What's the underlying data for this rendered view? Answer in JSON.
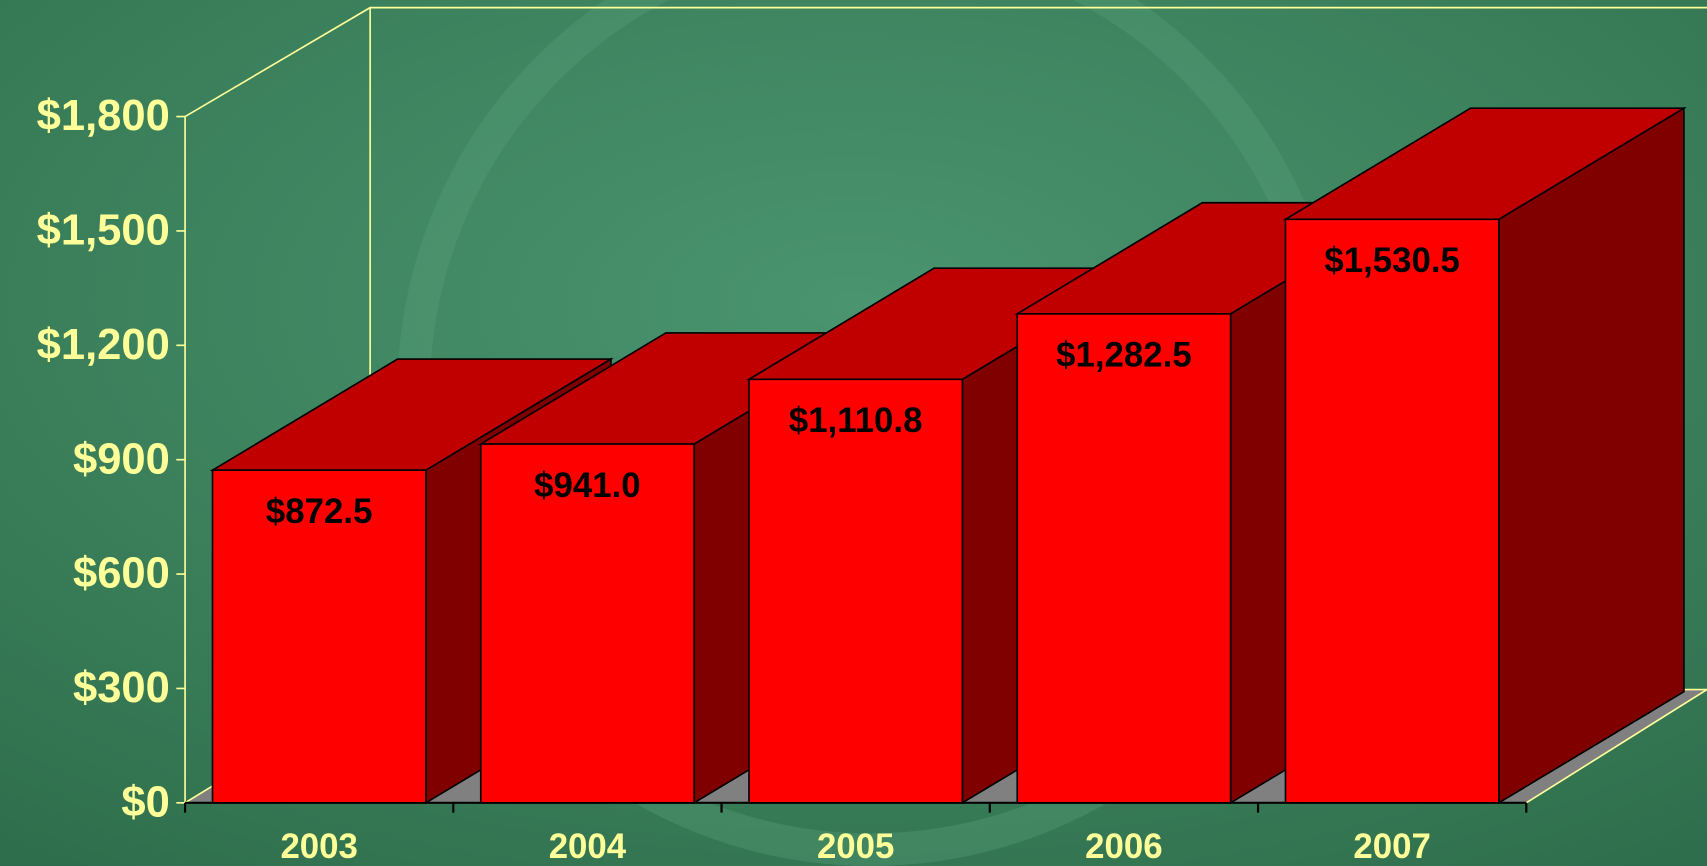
{
  "chart_data": {
    "type": "bar3d",
    "categories": [
      "2003",
      "2004",
      "2005",
      "2006",
      "2007"
    ],
    "values": [
      872.5,
      941.0,
      1110.8,
      1282.5,
      1530.5
    ],
    "value_labels": [
      "$872.5",
      "$941.0",
      "$1,110.8",
      "$1,282.5",
      "$1,530.5"
    ],
    "color": "#ff0000",
    "ylim": [
      0,
      1800
    ],
    "yticks": [
      {
        "value": 0,
        "label": "$0"
      },
      {
        "value": 300,
        "label": "$300"
      },
      {
        "value": 600,
        "label": "$600"
      },
      {
        "value": 900,
        "label": "$900"
      },
      {
        "value": 1200,
        "label": "$1,200"
      },
      {
        "value": 1500,
        "label": "$1,500"
      },
      {
        "value": 1800,
        "label": "$1,800"
      }
    ]
  }
}
